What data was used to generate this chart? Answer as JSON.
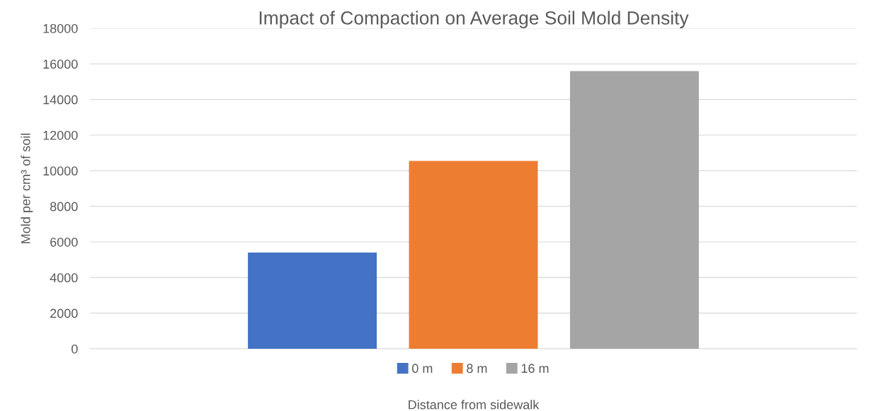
{
  "chart_data": {
    "type": "bar",
    "title": "Impact of Compaction on Average Soil Mold Density",
    "xlabel": "Distance from sidewalk",
    "ylabel": "Mold per cm³ of soil",
    "categories": [
      null
    ],
    "series": [
      {
        "name": "0 m",
        "color": "#4472c4",
        "values": [
          5400
        ]
      },
      {
        "name": "8 m",
        "color": "#ed7d31",
        "values": [
          10550
        ]
      },
      {
        "name": "16 m",
        "color": "#a5a5a5",
        "values": [
          15600
        ]
      }
    ],
    "ylim": [
      0,
      18000
    ],
    "yticks": [
      0,
      2000,
      4000,
      6000,
      8000,
      10000,
      12000,
      14000,
      16000,
      18000
    ],
    "grid": "y",
    "legend": "bottom"
  }
}
